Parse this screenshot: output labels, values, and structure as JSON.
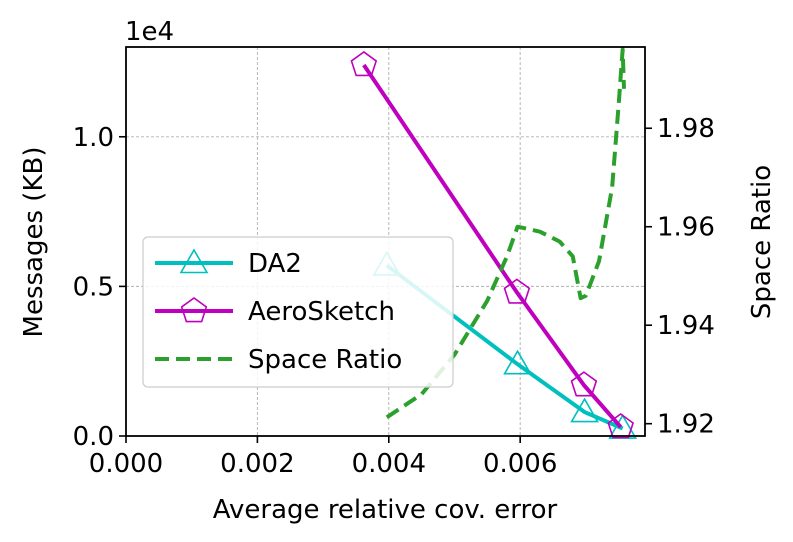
{
  "chart_data": {
    "type": "line",
    "x_label": "Average relative cov. error",
    "y_label_left": "Messages (KB)",
    "y_label_right": "Space Ratio",
    "left_axis_exponent": "1e4",
    "x_range": [
      0.0,
      0.0079
    ],
    "y_left_range": [
      0,
      13000
    ],
    "y_right_range": [
      1.9175,
      1.9965
    ],
    "x_ticks": [
      0.0,
      0.002,
      0.004,
      0.006
    ],
    "x_tick_labels": [
      "0.000",
      "0.002",
      "0.004",
      "0.006"
    ],
    "y_left_ticks": [
      0,
      5000,
      10000
    ],
    "y_left_tick_labels": [
      "0.0",
      "0.5",
      "1.0"
    ],
    "y_right_ticks": [
      1.92,
      1.94,
      1.96,
      1.98
    ],
    "y_right_tick_labels": [
      "1.92",
      "1.94",
      "1.96",
      "1.98"
    ],
    "grid": true,
    "legend_position": "center-left",
    "series": [
      {
        "name": "DA2",
        "axis": "left",
        "color": "#00bfbf",
        "style": "solid",
        "marker": "triangle",
        "x": [
          0.00397,
          0.00596,
          0.00698,
          0.00756
        ],
        "y": [
          5700,
          2400,
          800,
          250
        ]
      },
      {
        "name": "AeroSketch",
        "axis": "left",
        "color": "#bf00bf",
        "style": "solid",
        "marker": "pentagon",
        "x": [
          0.00362,
          0.00595,
          0.00697,
          0.00753
        ],
        "y": [
          12400,
          4800,
          1700,
          300
        ]
      },
      {
        "name": "Space Ratio",
        "axis": "right",
        "color": "#2ca02c",
        "style": "dashed",
        "marker": "none",
        "x": [
          0.00397,
          0.0045,
          0.005,
          0.0055,
          0.0058,
          0.00596,
          0.0063,
          0.0066,
          0.0068,
          0.00692,
          0.007,
          0.0072,
          0.0074,
          0.0075,
          0.00756,
          0.00758
        ],
        "y": [
          1.9213,
          1.926,
          1.934,
          1.945,
          1.954,
          1.96,
          1.959,
          1.957,
          1.954,
          1.9455,
          1.946,
          1.953,
          1.968,
          1.985,
          1.996,
          1.988
        ]
      }
    ]
  }
}
